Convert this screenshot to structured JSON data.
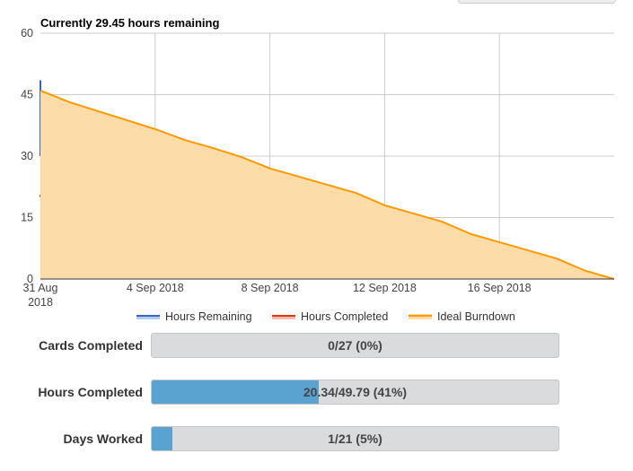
{
  "chart_data": {
    "type": "area",
    "title": "Currently 29.45 hours remaining",
    "ylim": [
      0,
      60
    ],
    "y_ticks": [
      "0",
      "15",
      "30",
      "45",
      "60"
    ],
    "x_ticks": [
      {
        "day": 0,
        "lines": [
          "31 Aug",
          "2018"
        ]
      },
      {
        "day": 4,
        "lines": [
          "4 Sep 2018"
        ]
      },
      {
        "day": 8,
        "lines": [
          "8 Sep 2018"
        ]
      },
      {
        "day": 12,
        "lines": [
          "12 Sep 2018"
        ]
      },
      {
        "day": 16,
        "lines": [
          "16 Sep 2018"
        ]
      }
    ],
    "xlim_days": [
      0,
      20
    ],
    "grid": true,
    "legend_position": "bottom",
    "series": [
      {
        "name": "Hours Remaining",
        "color": "#3366cc",
        "type": "line",
        "points": [
          [
            0,
            48.5
          ],
          [
            0,
            30
          ]
        ]
      },
      {
        "name": "Hours Completed",
        "color": "#dc3912",
        "type": "line",
        "points": [
          [
            0,
            20.3
          ]
        ]
      },
      {
        "name": "Ideal Burndown",
        "color": "#ff9900",
        "fill": "#fcdca8",
        "type": "area",
        "points": [
          [
            0,
            46
          ],
          [
            1,
            43.2
          ],
          [
            2,
            41
          ],
          [
            3,
            38.8
          ],
          [
            4,
            36.6
          ],
          [
            5,
            34
          ],
          [
            6,
            32
          ],
          [
            7,
            29.8
          ],
          [
            8,
            27
          ],
          [
            9,
            25
          ],
          [
            10,
            23
          ],
          [
            11,
            21
          ],
          [
            12,
            18
          ],
          [
            13,
            16
          ],
          [
            14,
            14
          ],
          [
            15,
            11
          ],
          [
            16,
            9
          ],
          [
            17,
            7
          ],
          [
            18,
            5
          ],
          [
            19,
            2
          ],
          [
            20,
            0
          ]
        ]
      }
    ]
  },
  "progress": [
    {
      "label": "Cards Completed",
      "text": "0/27 (0%)",
      "fraction": 0.0
    },
    {
      "label": "Hours Completed",
      "text": "20.34/49.79 (41%)",
      "fraction": 0.41
    },
    {
      "label": "Days Worked",
      "text": "1/21 (5%)",
      "fraction": 0.05
    }
  ]
}
